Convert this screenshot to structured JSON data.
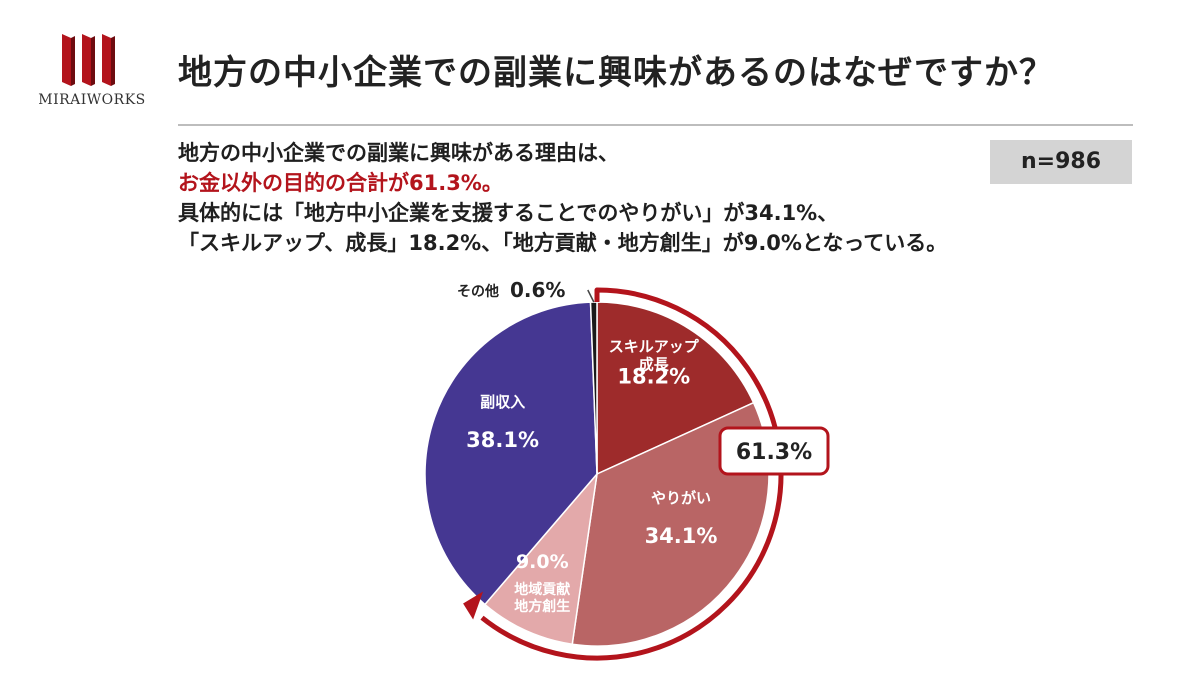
{
  "logo": {
    "text": "MIRAIWORKS",
    "brand_color": "#b3141c"
  },
  "title": "地方の中小企業での副業に興味があるのはなぜですか？",
  "summary": {
    "line1": "地方の中小企業での副業に興味がある理由は、",
    "line2": "お金以外の目的の合計が61.3%。",
    "line3": "具体的には「地方中小企業を支援することでのやりがい」が34.1%、",
    "line4": "「スキルアップ、成長」18.2%、「地方貢献・地方創生」が9.0%となっている。"
  },
  "sample_size": "n=986",
  "chart_data": {
    "type": "pie",
    "start": "top",
    "direction": "clockwise",
    "slices": [
      {
        "label_lines": [
          "スキルアップ",
          "成長"
        ],
        "value": 18.2,
        "value_label": "18.2%",
        "color": "#9e2b2b"
      },
      {
        "label_lines": [
          "やりがい"
        ],
        "value": 34.1,
        "value_label": "34.1%",
        "color": "#b96565"
      },
      {
        "label_lines": [
          "地域貢献",
          "地方創生"
        ],
        "value": 9.0,
        "value_label": "9.0%",
        "color": "#e3a9aa"
      },
      {
        "label_lines": [
          "副収入"
        ],
        "value": 38.1,
        "value_label": "38.1%",
        "color": "#453792"
      },
      {
        "label_lines": [
          "その他"
        ],
        "value": 0.6,
        "value_label": "0.6%",
        "color": "#1a1a1a"
      }
    ],
    "grouped_total": {
      "value": 61.3,
      "label": "61.3%",
      "color": "#b3141c"
    }
  }
}
